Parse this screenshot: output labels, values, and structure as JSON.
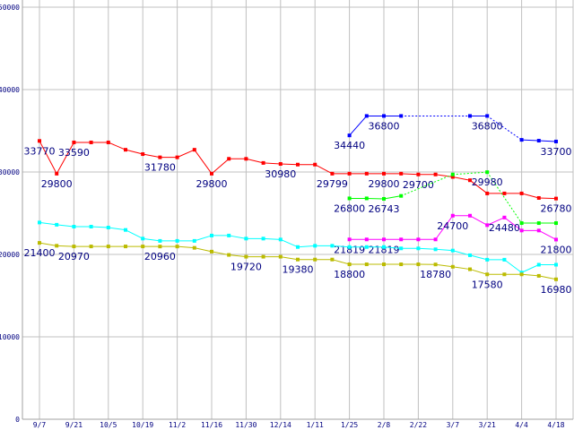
{
  "chart_data": {
    "type": "line",
    "title": "",
    "xlabel": "",
    "ylabel": "",
    "ylim": [
      0,
      50000
    ],
    "grid": true,
    "yticks": [
      0,
      10000,
      20000,
      30000,
      40000,
      50000
    ],
    "xtick_labels": [
      "9/7",
      "9/21",
      "10/5",
      "10/19",
      "11/2",
      "11/16",
      "11/30",
      "12/14",
      "1/11",
      "1/25",
      "2/8",
      "2/22",
      "3/7",
      "3/21",
      "4/4",
      "4/18"
    ],
    "num_points": 31,
    "series": [
      {
        "name": "red",
        "color": "#ff0000",
        "values": [
          33770,
          29800,
          33590,
          33590,
          33590,
          32700,
          32170,
          31780,
          31780,
          32700,
          29800,
          31600,
          31600,
          31100,
          30980,
          30900,
          30900,
          29799,
          29800,
          29800,
          29800,
          29800,
          29700,
          29700,
          29400,
          29000,
          27400,
          27400,
          27400,
          26850,
          26780
        ],
        "labels": [
          [
            0,
            "33770"
          ],
          [
            1,
            "29800"
          ],
          [
            2,
            "33590"
          ],
          [
            7,
            "31780"
          ],
          [
            10,
            "29800"
          ],
          [
            14,
            "30980"
          ],
          [
            17,
            "29799"
          ],
          [
            20,
            "29800"
          ],
          [
            22,
            "29700"
          ],
          [
            30,
            "26780"
          ]
        ]
      },
      {
        "name": "blue",
        "color": "#0000ff",
        "values": [
          null,
          null,
          null,
          null,
          null,
          null,
          null,
          null,
          null,
          null,
          null,
          null,
          null,
          null,
          null,
          null,
          null,
          null,
          34440,
          36800,
          36800,
          36800,
          null,
          null,
          null,
          36800,
          36800,
          null,
          33900,
          33800,
          33700
        ],
        "labels": [
          [
            18,
            "34440"
          ],
          [
            20,
            "36800"
          ],
          [
            26,
            "36800"
          ],
          [
            30,
            "33700"
          ]
        ]
      },
      {
        "name": "green",
        "color": "#00ff00",
        "values": [
          null,
          null,
          null,
          null,
          null,
          null,
          null,
          null,
          null,
          null,
          null,
          null,
          null,
          null,
          null,
          null,
          null,
          null,
          26800,
          26800,
          26743,
          27100,
          null,
          null,
          29700,
          null,
          29980,
          null,
          23800,
          23800,
          23800
        ],
        "labels": [
          [
            18,
            "26800"
          ],
          [
            20,
            "26743"
          ],
          [
            26,
            "29980"
          ]
        ]
      },
      {
        "name": "magenta",
        "color": "#ff00ff",
        "values": [
          null,
          null,
          null,
          null,
          null,
          null,
          null,
          null,
          null,
          null,
          null,
          null,
          null,
          null,
          null,
          null,
          null,
          null,
          21819,
          21819,
          21819,
          21819,
          21819,
          21819,
          24700,
          24700,
          23550,
          24480,
          22900,
          22900,
          21800
        ],
        "labels": [
          [
            18,
            "21819"
          ],
          [
            20,
            "21819"
          ],
          [
            24,
            "24700"
          ],
          [
            27,
            "24480"
          ],
          [
            30,
            "21800"
          ]
        ]
      },
      {
        "name": "cyan",
        "color": "#00ffff",
        "values": [
          23870,
          23600,
          23370,
          23370,
          23260,
          22970,
          21920,
          21640,
          21640,
          21640,
          22290,
          22290,
          21920,
          21920,
          21810,
          20900,
          21050,
          21050,
          20900,
          20900,
          20900,
          20730,
          20730,
          20620,
          20470,
          19900,
          19360,
          19360,
          17800,
          18750,
          18750
        ],
        "labels": []
      },
      {
        "name": "olive",
        "color": "#bbbb00",
        "values": [
          21400,
          21050,
          20970,
          20970,
          20970,
          20970,
          20970,
          20960,
          20960,
          20800,
          20340,
          19940,
          19720,
          19720,
          19720,
          19380,
          19380,
          19380,
          18800,
          18800,
          18800,
          18800,
          18800,
          18780,
          18500,
          18200,
          17580,
          17580,
          17580,
          17400,
          16980
        ],
        "labels": [
          [
            0,
            "21400"
          ],
          [
            2,
            "20970"
          ],
          [
            7,
            "20960"
          ],
          [
            12,
            "19720"
          ],
          [
            15,
            "19380"
          ],
          [
            18,
            "18800"
          ],
          [
            23,
            "18780"
          ],
          [
            26,
            "17580"
          ],
          [
            30,
            "16980"
          ]
        ]
      }
    ]
  }
}
